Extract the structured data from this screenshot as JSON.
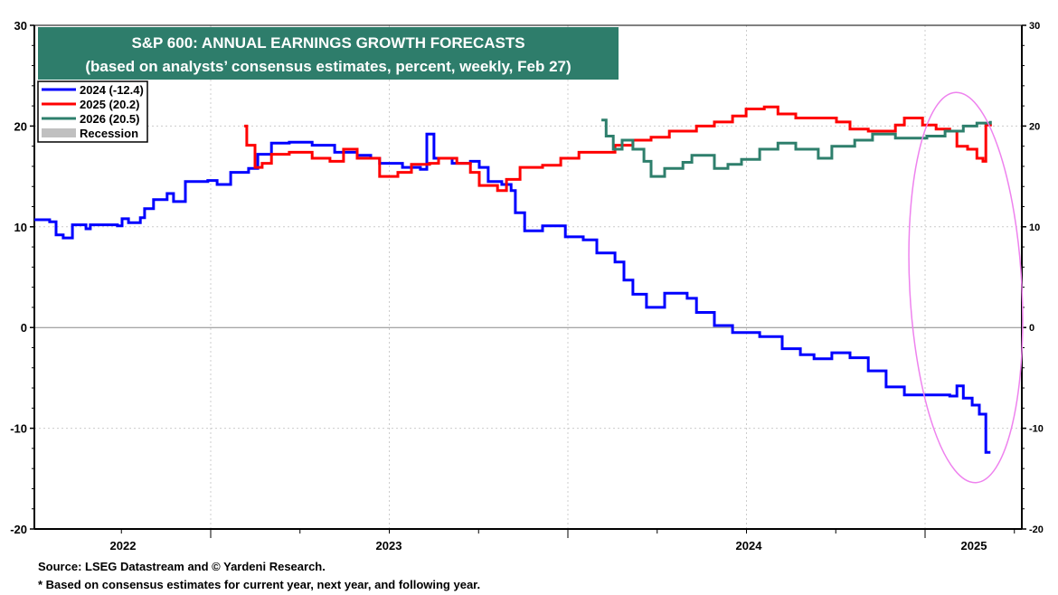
{
  "chart_data": {
    "type": "line",
    "title": "S&P 600: ANNUAL EARNINGS GROWTH FORECASTS",
    "subtitle": "(based on analysts’ consensus estimates, percent, weekly, Feb 27)",
    "xlabel": "",
    "ylabel": "",
    "ylim": [
      -20,
      30
    ],
    "yticks": [
      "30",
      "20",
      "10",
      "0",
      "-10",
      "-20"
    ],
    "xlim": [
      2022.5,
      2025.27
    ],
    "xtick_labels": [
      "2022",
      "2023",
      "2024",
      "2025"
    ],
    "grid": true,
    "legend_placement": "top-left",
    "colors": {
      "s2024": "#0000ff",
      "s2025": "#ff0000",
      "s2026": "#2e7f6c",
      "recession": "#c0c0c0",
      "title_bg": "#2e7d6b",
      "annotation": "#ee82ee"
    },
    "legend": [
      "2024 (-12.4)",
      "2025 (20.2)",
      "2026 (20.5)",
      "Recession"
    ],
    "series": [
      {
        "name": "2024 (-12.4)",
        "step": true,
        "points": [
          [
            2022.506,
            10.7
          ],
          [
            2022.549,
            10.5
          ],
          [
            2022.567,
            9.2
          ],
          [
            2022.587,
            8.9
          ],
          [
            2022.613,
            10.2
          ],
          [
            2022.651,
            9.8
          ],
          [
            2022.663,
            10.2
          ],
          [
            2022.739,
            10.1
          ],
          [
            2022.752,
            10.8
          ],
          [
            2022.77,
            10.4
          ],
          [
            2022.803,
            10.9
          ],
          [
            2022.815,
            11.8
          ],
          [
            2022.84,
            12.7
          ],
          [
            2022.878,
            13.3
          ],
          [
            2022.896,
            12.5
          ],
          [
            2022.929,
            14.5
          ],
          [
            2022.992,
            14.6
          ],
          [
            2023.018,
            14.2
          ],
          [
            2023.056,
            15.4
          ],
          [
            2023.106,
            15.8
          ],
          [
            2023.132,
            17.2
          ],
          [
            2023.17,
            18.3
          ],
          [
            2023.22,
            18.4
          ],
          [
            2023.284,
            18.1
          ],
          [
            2023.347,
            17.4
          ],
          [
            2023.41,
            17.1
          ],
          [
            2023.448,
            16.8
          ],
          [
            2023.473,
            16.3
          ],
          [
            2023.537,
            15.9
          ],
          [
            2023.587,
            15.7
          ],
          [
            2023.605,
            19.2
          ],
          [
            2023.625,
            16.8
          ],
          [
            2023.676,
            16.3
          ],
          [
            2023.727,
            16.5
          ],
          [
            2023.752,
            15.9
          ],
          [
            2023.777,
            14.5
          ],
          [
            2023.815,
            14.2
          ],
          [
            2023.841,
            13.6
          ],
          [
            2023.853,
            11.4
          ],
          [
            2023.879,
            9.6
          ],
          [
            2023.929,
            10.1
          ],
          [
            2023.993,
            9.0
          ],
          [
            2024.043,
            8.7
          ],
          [
            2024.081,
            7.4
          ],
          [
            2024.132,
            6.5
          ],
          [
            2024.157,
            4.7
          ],
          [
            2024.182,
            3.3
          ],
          [
            2024.22,
            2.0
          ],
          [
            2024.271,
            3.4
          ],
          [
            2024.334,
            2.9
          ],
          [
            2024.36,
            1.5
          ],
          [
            2024.41,
            0.2
          ],
          [
            2024.461,
            -0.5
          ],
          [
            2024.537,
            -0.9
          ],
          [
            2024.6,
            -2.1
          ],
          [
            2024.651,
            -2.7
          ],
          [
            2024.689,
            -3.1
          ],
          [
            2024.739,
            -2.5
          ],
          [
            2024.79,
            -3.0
          ],
          [
            2024.841,
            -4.3
          ],
          [
            2024.891,
            -5.9
          ],
          [
            2024.942,
            -6.7
          ],
          [
            2024.993,
            -6.7
          ],
          [
            2025.069,
            -6.8
          ],
          [
            2025.089,
            -5.8
          ],
          [
            2025.107,
            -7.0
          ],
          [
            2025.132,
            -7.7
          ],
          [
            2025.152,
            -8.6
          ],
          [
            2025.17,
            -12.4
          ],
          [
            2025.183,
            -12.4
          ]
        ]
      },
      {
        "name": "2025 (20.2)",
        "step": true,
        "points": [
          [
            2023.094,
            20.0
          ],
          [
            2023.101,
            18.1
          ],
          [
            2023.124,
            15.9
          ],
          [
            2023.144,
            16.3
          ],
          [
            2023.17,
            17.2
          ],
          [
            2023.22,
            17.4
          ],
          [
            2023.284,
            16.8
          ],
          [
            2023.334,
            16.5
          ],
          [
            2023.372,
            17.7
          ],
          [
            2023.41,
            16.8
          ],
          [
            2023.473,
            15.0
          ],
          [
            2023.524,
            15.4
          ],
          [
            2023.562,
            16.2
          ],
          [
            2023.613,
            16.3
          ],
          [
            2023.638,
            16.8
          ],
          [
            2023.689,
            16.3
          ],
          [
            2023.727,
            15.4
          ],
          [
            2023.752,
            14.1
          ],
          [
            2023.803,
            13.6
          ],
          [
            2023.828,
            14.7
          ],
          [
            2023.866,
            15.9
          ],
          [
            2023.929,
            16.1
          ],
          [
            2023.98,
            16.8
          ],
          [
            2024.031,
            17.4
          ],
          [
            2024.081,
            17.4
          ],
          [
            2024.132,
            18.1
          ],
          [
            2024.182,
            18.6
          ],
          [
            2024.233,
            18.9
          ],
          [
            2024.284,
            19.5
          ],
          [
            2024.36,
            20.0
          ],
          [
            2024.41,
            20.4
          ],
          [
            2024.461,
            21.0
          ],
          [
            2024.499,
            21.7
          ],
          [
            2024.55,
            21.9
          ],
          [
            2024.588,
            21.2
          ],
          [
            2024.638,
            20.8
          ],
          [
            2024.701,
            20.8
          ],
          [
            2024.752,
            20.4
          ],
          [
            2024.79,
            19.7
          ],
          [
            2024.841,
            19.5
          ],
          [
            2024.917,
            20.1
          ],
          [
            2024.942,
            20.8
          ],
          [
            2024.993,
            20.1
          ],
          [
            2025.031,
            19.7
          ],
          [
            2025.069,
            19.5
          ],
          [
            2025.089,
            18.0
          ],
          [
            2025.119,
            17.7
          ],
          [
            2025.145,
            16.8
          ],
          [
            2025.162,
            16.5
          ],
          [
            2025.17,
            20.1
          ],
          [
            2025.183,
            20.2
          ]
        ]
      },
      {
        "name": "2026 (20.5)",
        "step": true,
        "points": [
          [
            2024.094,
            20.6
          ],
          [
            2024.107,
            19.0
          ],
          [
            2024.127,
            17.7
          ],
          [
            2024.152,
            18.6
          ],
          [
            2024.182,
            17.7
          ],
          [
            2024.213,
            16.5
          ],
          [
            2024.233,
            15.0
          ],
          [
            2024.271,
            15.8
          ],
          [
            2024.322,
            16.4
          ],
          [
            2024.347,
            17.1
          ],
          [
            2024.41,
            15.8
          ],
          [
            2024.448,
            16.2
          ],
          [
            2024.486,
            16.7
          ],
          [
            2024.537,
            17.7
          ],
          [
            2024.588,
            18.3
          ],
          [
            2024.638,
            17.7
          ],
          [
            2024.701,
            16.8
          ],
          [
            2024.739,
            18.0
          ],
          [
            2024.803,
            18.6
          ],
          [
            2024.853,
            19.2
          ],
          [
            2024.917,
            18.8
          ],
          [
            2024.967,
            18.8
          ],
          [
            2025.005,
            19.0
          ],
          [
            2025.056,
            19.5
          ],
          [
            2025.107,
            20.0
          ],
          [
            2025.145,
            20.3
          ],
          [
            2025.183,
            20.5
          ]
        ]
      }
    ]
  },
  "footer": {
    "source": "Source: LSEG Datastream and © Yardeni Research.",
    "note": "* Based on consensus estimates for current year, next year, and following year."
  }
}
